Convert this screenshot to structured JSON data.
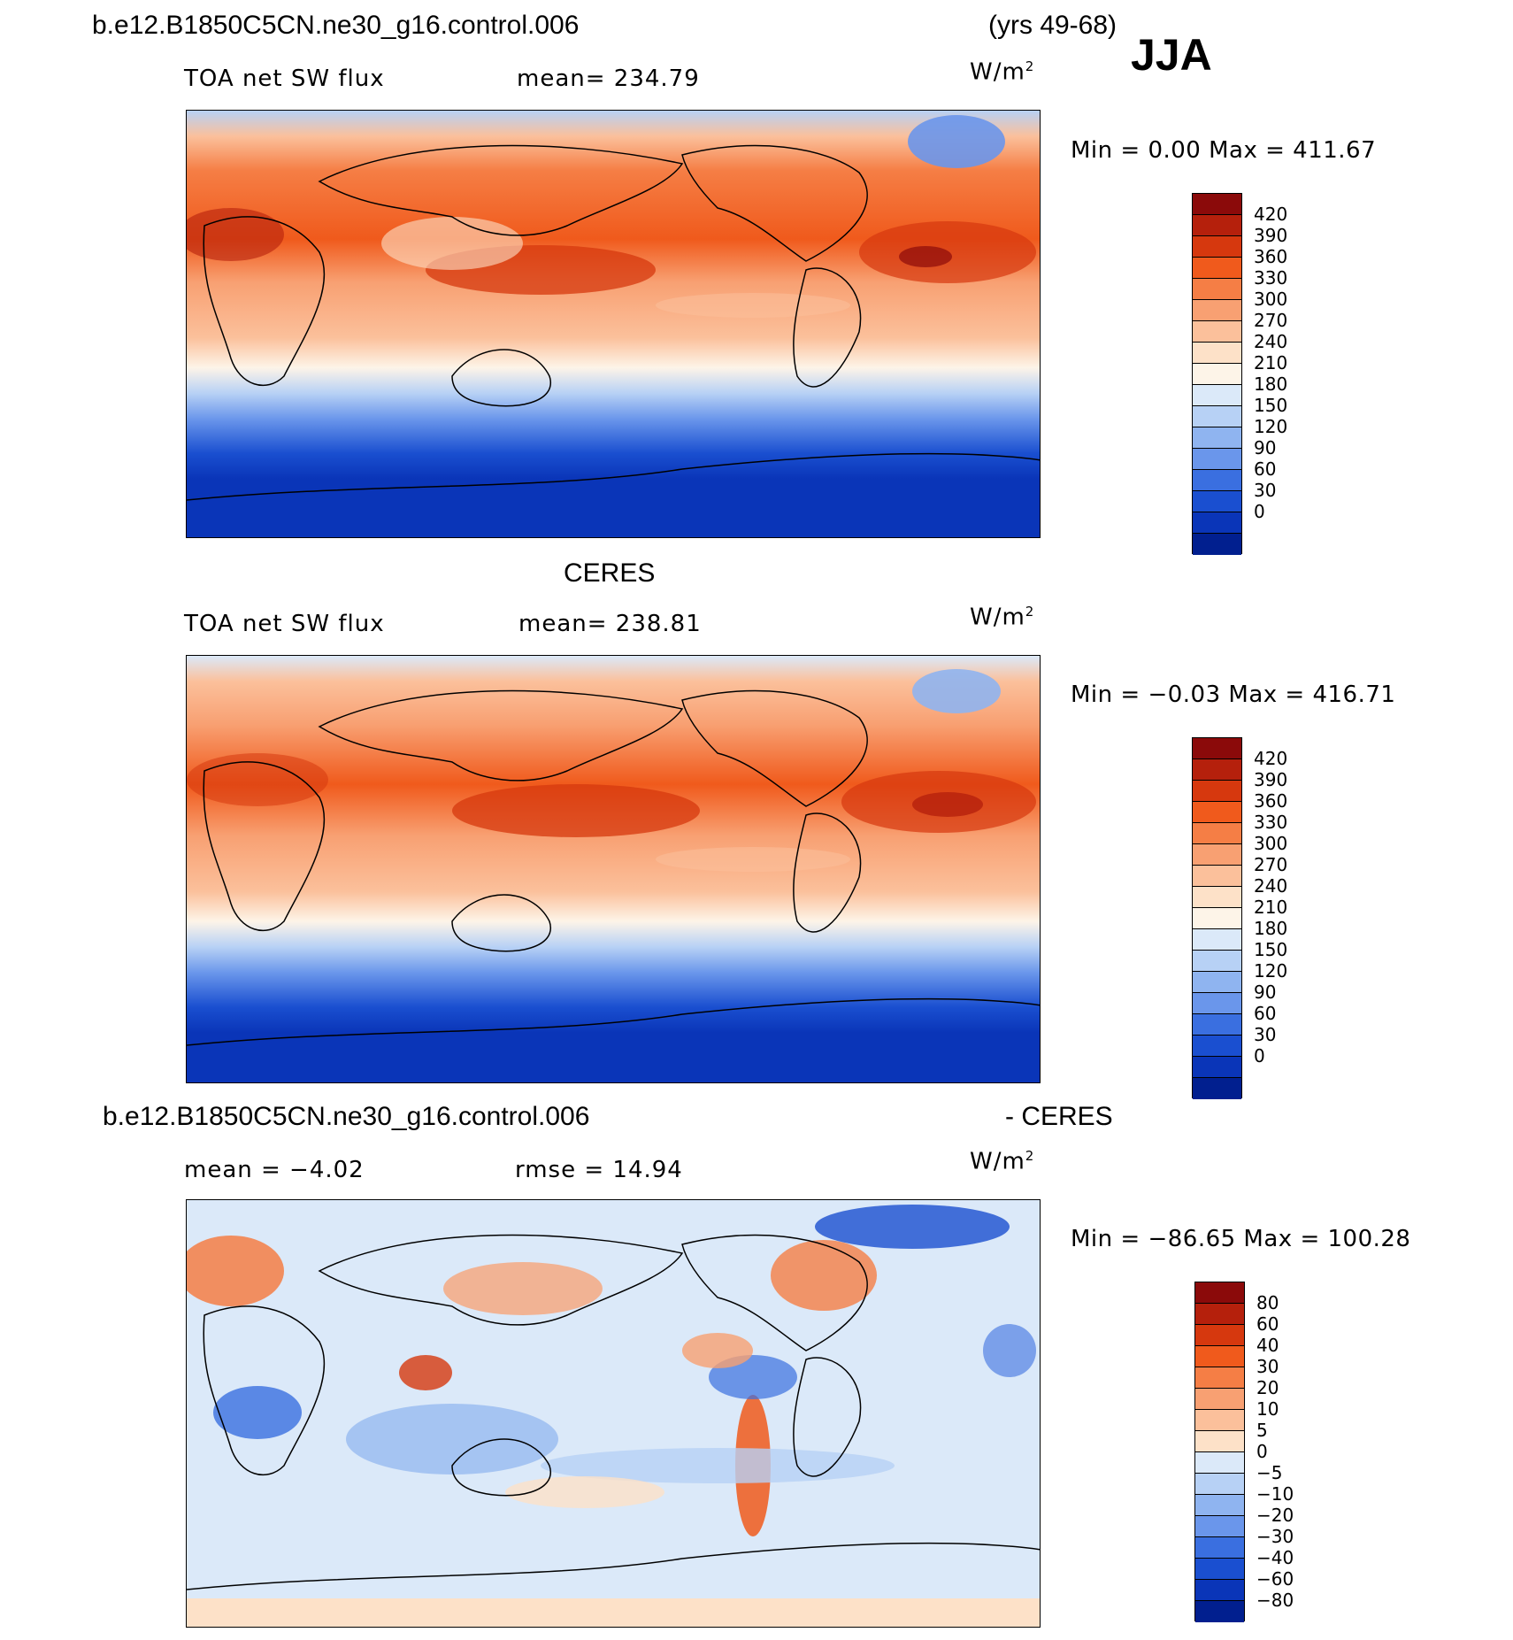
{
  "header": {
    "case_name": "b.e12.B1850C5CN.ne30_g16.control.006",
    "years": "(yrs 49-68)",
    "season": "JJA"
  },
  "panels": [
    {
      "id": "model",
      "caption": "",
      "left_label": "TOA net SW flux",
      "center_label": "mean=  234.79",
      "units_base": "W/m",
      "units_exp": "2",
      "minmax": "Min =    0.00 Max = 411.67",
      "palette": "absolute"
    },
    {
      "id": "obs",
      "caption": "CERES",
      "left_label": "TOA net SW flux",
      "center_label": "mean=  238.81",
      "units_base": "W/m",
      "units_exp": "2",
      "minmax": "Min =  −0.03 Max = 416.71",
      "palette": "absolute"
    },
    {
      "id": "diff",
      "caption_left": "b.e12.B1850C5CN.ne30_g16.control.006",
      "caption_right": "- CERES",
      "left_label": "mean =   −4.02",
      "center_label": "rmse =   14.94",
      "units_base": "W/m",
      "units_exp": "2",
      "minmax": "Min = −86.65 Max = 100.28",
      "palette": "difference"
    }
  ],
  "colorbars": {
    "absolute": {
      "labels": [
        "420",
        "390",
        "360",
        "330",
        "300",
        "270",
        "240",
        "210",
        "180",
        "150",
        "120",
        "90",
        "60",
        "30",
        "0"
      ],
      "colors": [
        "#8b0a0a",
        "#b5200c",
        "#d6380e",
        "#f05a1c",
        "#f57e45",
        "#f8a072",
        "#fbc09b",
        "#fde1c8",
        "#fdf4e8",
        "#dbe9f9",
        "#b7d1f5",
        "#8fb4f0",
        "#6a96eb",
        "#3a6fe0",
        "#1a4fd0",
        "#0a35b8",
        "#011f8f"
      ]
    },
    "difference": {
      "labels": [
        "80",
        "60",
        "40",
        "30",
        "20",
        "10",
        "5",
        "0",
        "−5",
        "−10",
        "−20",
        "−30",
        "−40",
        "−60",
        "−80"
      ],
      "colors": [
        "#8b0a0a",
        "#b5200c",
        "#d6380e",
        "#f05a1c",
        "#f57e45",
        "#f8a072",
        "#fbc09b",
        "#fde1c8",
        "#dbe9f9",
        "#b7d1f5",
        "#8fb4f0",
        "#6a96eb",
        "#3a6fe0",
        "#1a4fd0",
        "#0a35b8",
        "#011f8f"
      ]
    }
  }
}
